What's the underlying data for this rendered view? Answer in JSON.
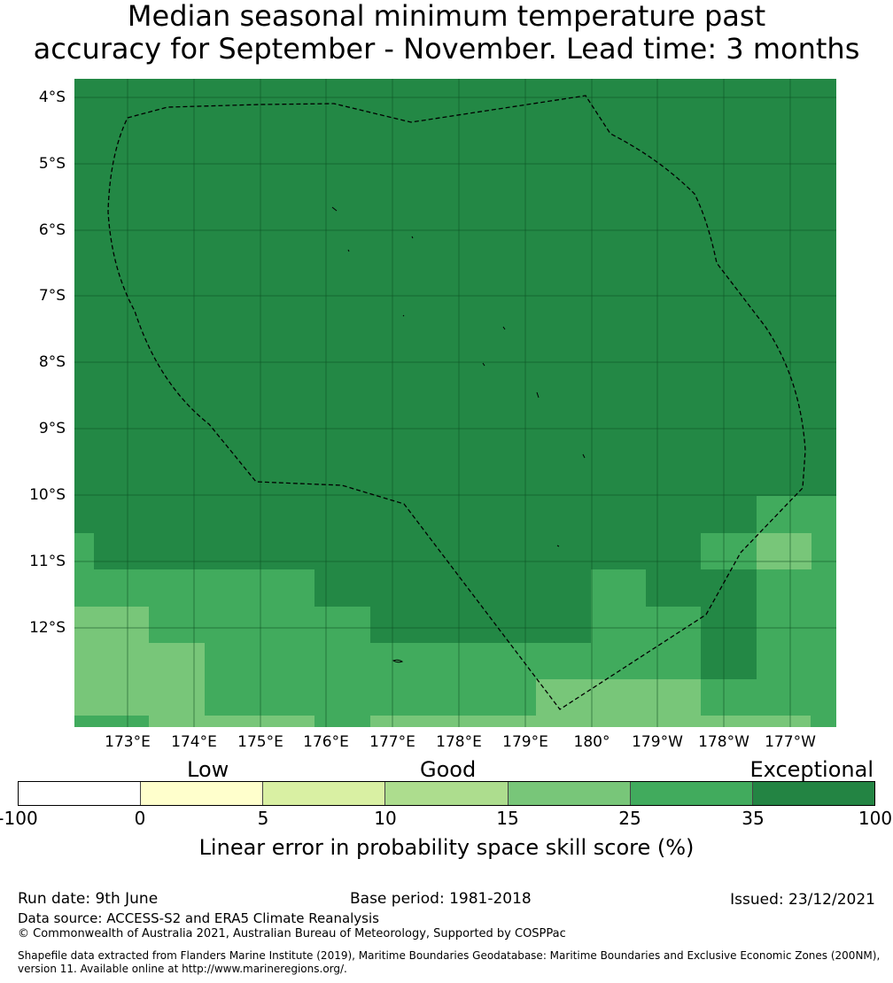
{
  "title": {
    "line1": "Median seasonal minimum temperature past",
    "line2": "accuracy for September - November. Lead time: 3 months"
  },
  "map": {
    "lat_labels": [
      "4°S",
      "5°S",
      "6°S",
      "7°S",
      "8°S",
      "9°S",
      "10°S",
      "11°S",
      "12°S"
    ],
    "lon_labels": [
      "173°E",
      "174°E",
      "175°E",
      "176°E",
      "177°E",
      "178°E",
      "179°E",
      "180°",
      "179°W",
      "178°W",
      "177°W"
    ],
    "region_fill_colors": {
      "exceptional": "#238845",
      "very_good": "#41ab5d",
      "good": "#78c679"
    },
    "boundary_style": "dashed black line (exclusive economic zone)"
  },
  "legend": {
    "categories": [
      "Low",
      "Good",
      "Exceptional"
    ],
    "ticks": [
      "-100",
      "0",
      "5",
      "10",
      "15",
      "25",
      "35",
      "100"
    ],
    "colors": [
      "#ffffff",
      "#ffffcc",
      "#d9f0a3",
      "#addd8e",
      "#78c679",
      "#41ab5d",
      "#238443"
    ],
    "label": "Linear error in probability space skill score (%)"
  },
  "footer": {
    "run_date": "Run date: 9th June",
    "base_period": "Base period: 1981-2018",
    "issued": "Issued: 23/12/2021",
    "data_source": "Data source: ACCESS-S2 and ERA5 Climate Reanalysis",
    "copyright": "© Commonwealth of Australia 2021, Australian Bureau of Meteorology, Supported by COSPPac",
    "shapefile": "Shapefile data extracted from Flanders Marine Institute (2019), Maritime Boundaries Geodatabase: Maritime Boundaries and Exclusive Economic Zones (200NM), version 11. Available online at http://www.marineregions.org/."
  }
}
